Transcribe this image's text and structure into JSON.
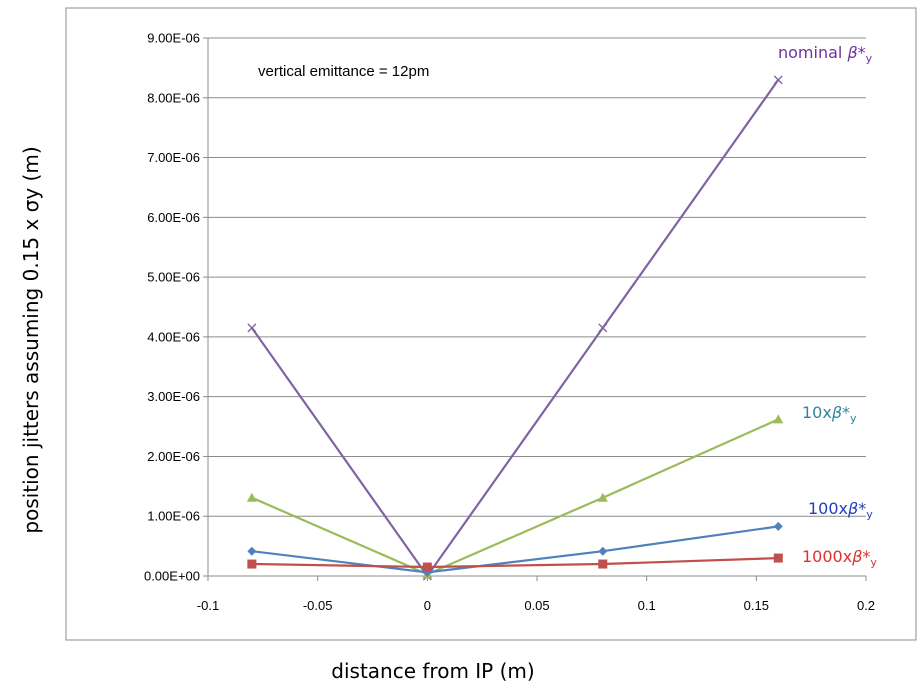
{
  "chart_data": {
    "type": "line",
    "xlabel": "distance from IP  (m)",
    "ylabel": "position jitters  assuming 0.15 x σy  (m)",
    "annotation": "vertical emittance = 12pm",
    "xlim": [
      -0.1,
      0.2
    ],
    "ylim": [
      0,
      9e-06
    ],
    "x_ticks": [
      "-0.1",
      "-0.05",
      "0",
      "0.05",
      "0.1",
      "0.15",
      "0.2"
    ],
    "x_tick_values": [
      -0.1,
      -0.05,
      0,
      0.05,
      0.1,
      0.15,
      0.2
    ],
    "y_ticks": [
      "0.00E+00",
      "1.00E-06",
      "2.00E-06",
      "3.00E-06",
      "4.00E-06",
      "5.00E-06",
      "6.00E-06",
      "7.00E-06",
      "8.00E-06",
      "9.00E-06"
    ],
    "y_tick_values": [
      0,
      1e-06,
      2e-06,
      3e-06,
      4e-06,
      5e-06,
      6e-06,
      7e-06,
      8e-06,
      9e-06
    ],
    "grid": "horizontal",
    "series": [
      {
        "name": "nominal β*y",
        "label_main": "nominal ",
        "label_beta": "β*",
        "label_sub": "y",
        "color": "#8064a2",
        "label_color": "#7030a0",
        "marker": "x",
        "x": [
          -0.08,
          0,
          0.08,
          0.16
        ],
        "y": [
          4.15e-06,
          0.0,
          4.15e-06,
          8.3e-06
        ]
      },
      {
        "name": "10xβ*y",
        "label_main": "10x",
        "label_beta": "β*",
        "label_sub": "y",
        "color": "#9bbb59",
        "label_color": "#31859c",
        "marker": "triangle",
        "x": [
          -0.08,
          0,
          0.08,
          0.16
        ],
        "y": [
          1.31e-06,
          3e-08,
          1.31e-06,
          2.62e-06
        ]
      },
      {
        "name": "100xβ*y",
        "label_main": "100x",
        "label_beta": "β*",
        "label_sub": "y",
        "color": "#4f81bd",
        "label_color": "#1f3fbf",
        "marker": "diamond",
        "x": [
          -0.08,
          0,
          0.08,
          0.16
        ],
        "y": [
          4.15e-07,
          6e-08,
          4.15e-07,
          8.3e-07
        ]
      },
      {
        "name": "1000xβ*y",
        "label_main": "1000x",
        "label_beta": "β*",
        "label_sub": "y",
        "color": "#c0504d",
        "label_color": "#e03030",
        "marker": "square",
        "x": [
          -0.08,
          0,
          0.08,
          0.16
        ],
        "y": [
          2e-07,
          1.5e-07,
          2e-07,
          3e-07
        ]
      }
    ]
  }
}
